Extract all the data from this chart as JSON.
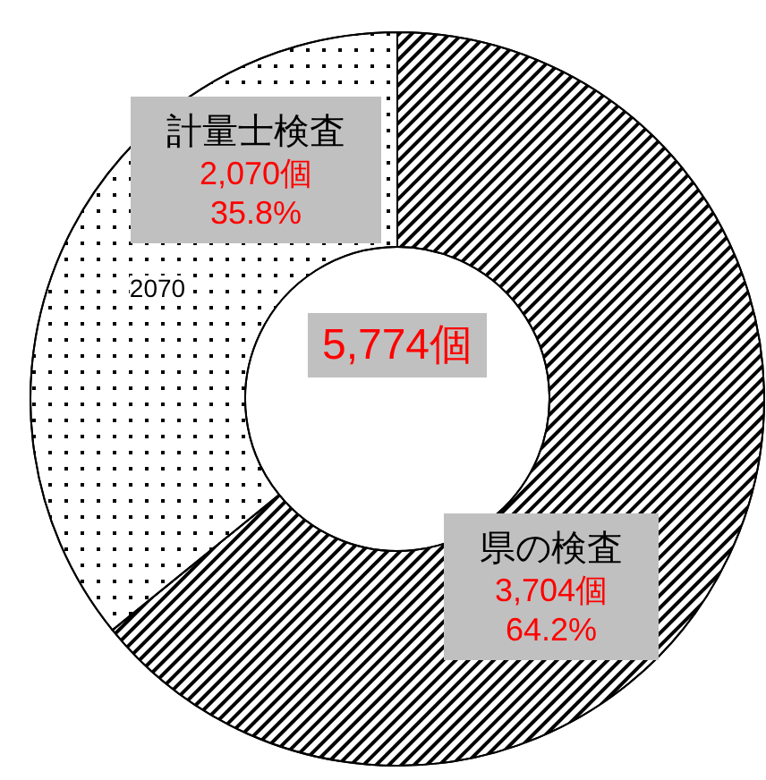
{
  "chart_data": {
    "type": "donut",
    "categories": [
      "県の検査",
      "計量士検査"
    ],
    "values": [
      3704,
      2070
    ],
    "value_labels": [
      "3,704個\n64.2%",
      "2,070個\n35.8%"
    ],
    "colors": [
      "#ffffff",
      "#ffffff"
    ],
    "annotations": [
      "5,774個",
      "2070"
    ],
    "legend": false
  }
}
